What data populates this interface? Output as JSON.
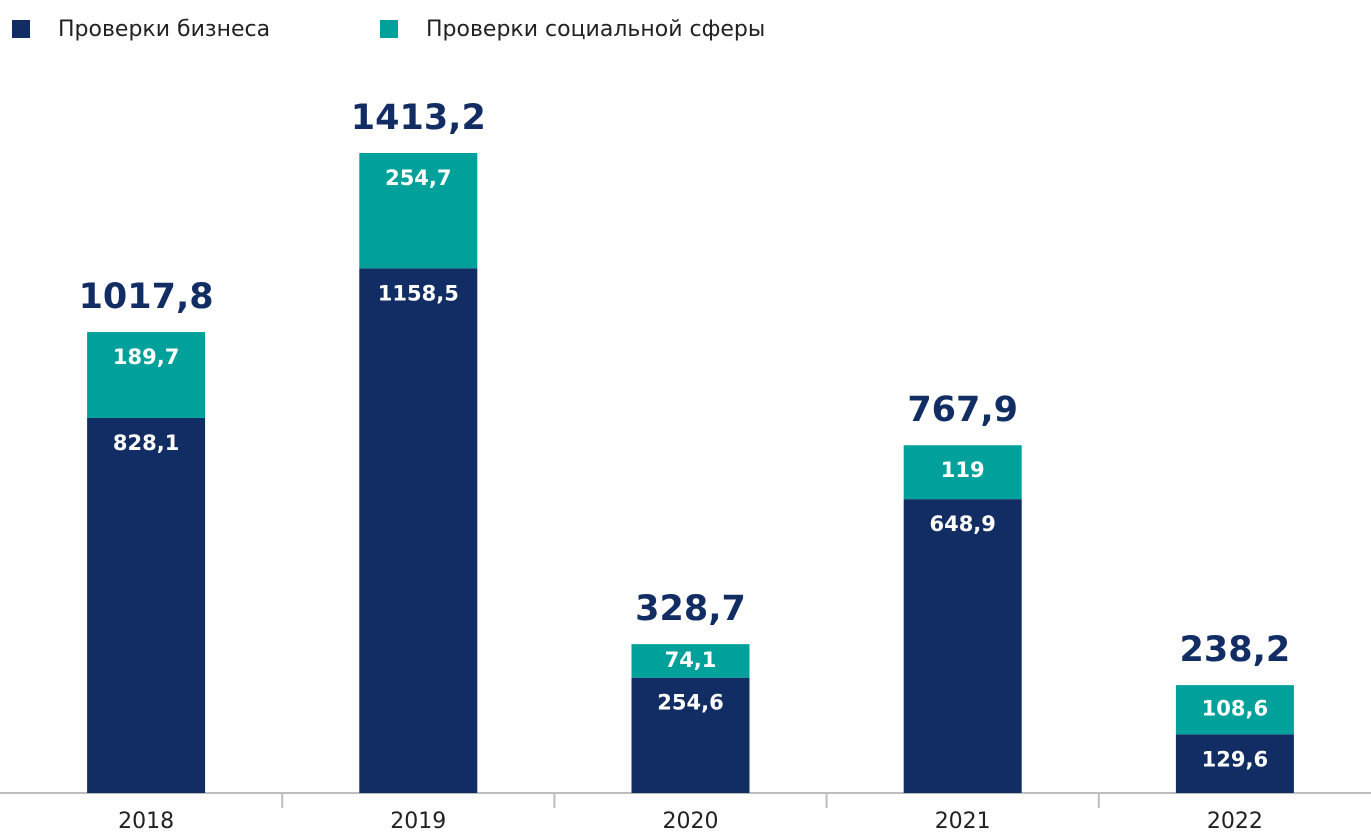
{
  "chart_data": {
    "type": "stacked_bar",
    "categories": [
      "2018",
      "2019",
      "2020",
      "2021",
      "2022"
    ],
    "series": [
      {
        "name": "Проверки бизнеса",
        "color": "#112d64",
        "values": [
          828.1,
          1158.5,
          254.6,
          648.9,
          129.6
        ],
        "value_labels": [
          "828,1",
          "1158,5",
          "254,6",
          "648,9",
          "129,6"
        ]
      },
      {
        "name": "Проверки социальной сферы",
        "color": "#00a19a",
        "values": [
          189.7,
          254.7,
          74.1,
          119,
          108.6
        ],
        "value_labels": [
          "189,7",
          "254,7",
          "74,1",
          "119",
          "108,6"
        ]
      }
    ],
    "totals": [
      1017.8,
      1413.2,
      328.7,
      767.9,
      238.2
    ],
    "total_labels": [
      "1017,8",
      "1413,2",
      "328,7",
      "767,9",
      "238,2"
    ],
    "legend": "top-left"
  }
}
